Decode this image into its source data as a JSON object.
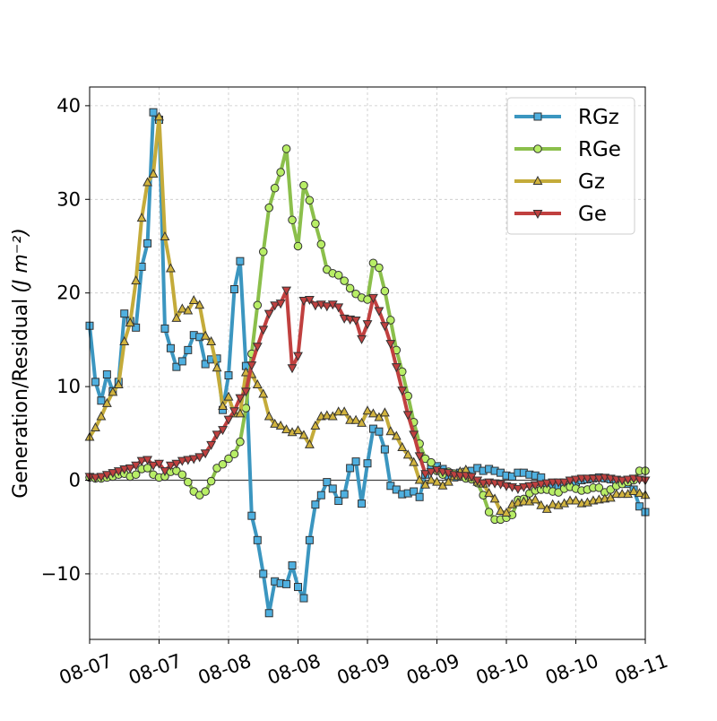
{
  "chart_data": {
    "type": "line",
    "title": "",
    "xlabel": "",
    "ylabel": "Generation/Residual",
    "ylabel_unit": "(J m⁻²)",
    "x_tick_labels": [
      "08-07",
      "08-07",
      "08-08",
      "08-08",
      "08-09",
      "08-09",
      "08-10",
      "08-10",
      "08-11"
    ],
    "x_ticks": [
      0,
      12,
      24,
      36,
      48,
      60,
      72,
      84,
      96
    ],
    "y_ticks": [
      -10,
      0,
      10,
      20,
      30,
      40
    ],
    "xlim": [
      0,
      96
    ],
    "ylim": [
      -17,
      42
    ],
    "x_unit": "hours since first tick",
    "grid": true,
    "zero_line": true,
    "legend_position": "top-right",
    "series": [
      {
        "name": "RGz",
        "color": "#3b96c0",
        "marker_fill": "#4fb0e0",
        "marker": "square",
        "x": [
          0,
          1,
          2,
          3,
          4,
          5,
          6,
          7,
          8,
          9,
          10,
          11,
          12,
          13,
          14,
          15,
          16,
          17,
          18,
          19,
          20,
          21,
          22,
          23,
          24,
          25,
          26,
          27,
          28,
          29,
          30,
          31,
          32,
          33,
          34,
          35,
          36,
          37,
          38,
          39,
          40,
          41,
          42,
          43,
          44,
          45,
          46,
          47,
          48,
          49,
          50,
          51,
          52,
          53,
          54,
          55,
          56,
          57,
          58,
          59,
          60,
          61,
          62,
          63,
          64,
          65,
          66,
          67,
          68,
          69,
          70,
          71,
          72,
          73,
          74,
          75,
          76,
          77,
          78,
          79,
          80,
          81,
          82,
          83,
          84,
          85,
          86,
          87,
          88,
          89,
          90,
          91,
          92,
          93,
          94,
          95,
          96
        ],
        "values": [
          16.5,
          10.5,
          8.5,
          11.3,
          9.5,
          10.5,
          17.8,
          17,
          16.3,
          22.8,
          25.3,
          39.3,
          38.5,
          16.2,
          14.1,
          12.1,
          12.7,
          13.9,
          15.5,
          15.3,
          12.4,
          12.9,
          13,
          7.5,
          11.2,
          20.4,
          23.4,
          12.2,
          -3.8,
          -6.4,
          -10,
          -14.2,
          -10.8,
          -11,
          -11.1,
          -9.1,
          -11.4,
          -12.6,
          -6.4,
          -2.6,
          -1.6,
          -0.2,
          -0.9,
          -2.2,
          -1.5,
          1.3,
          2,
          -2.5,
          1.8,
          5.5,
          5.2,
          3.3,
          -0.6,
          -1,
          -1.5,
          -1.4,
          -1.2,
          -1.8,
          0.6,
          1.3,
          1.5,
          1.2,
          0.5,
          0.3,
          0.8,
          0.9,
          1,
          1.3,
          1,
          1.2,
          1,
          0.8,
          0.5,
          0.4,
          0.8,
          0.8,
          0.6,
          0.5,
          0.3,
          -0.6,
          -0.8,
          -0.7,
          -0.4,
          -0.3,
          -0.2,
          0,
          0.1,
          0.2,
          0.3,
          0.2,
          0.1,
          0,
          -0.3,
          -0.4,
          -1,
          -2.8,
          -3.4
        ]
      },
      {
        "name": "RGe",
        "color": "#8bbf4b",
        "marker_fill": "#b8ee66",
        "marker": "circle",
        "x": [
          0,
          1,
          2,
          3,
          4,
          5,
          6,
          7,
          8,
          9,
          10,
          11,
          12,
          13,
          14,
          15,
          16,
          17,
          18,
          19,
          20,
          21,
          22,
          23,
          24,
          25,
          26,
          27,
          28,
          29,
          30,
          31,
          32,
          33,
          34,
          35,
          36,
          37,
          38,
          39,
          40,
          41,
          42,
          43,
          44,
          45,
          46,
          47,
          48,
          49,
          50,
          51,
          52,
          53,
          54,
          55,
          56,
          57,
          58,
          59,
          60,
          61,
          62,
          63,
          64,
          65,
          66,
          67,
          68,
          69,
          70,
          71,
          72,
          73,
          74,
          75,
          76,
          77,
          78,
          79,
          80,
          81,
          82,
          83,
          84,
          85,
          86,
          87,
          88,
          89,
          90,
          91,
          92,
          93,
          94,
          95,
          96
        ],
        "values": [
          0.3,
          0.2,
          0.2,
          0.3,
          0.4,
          0.6,
          0.7,
          0.4,
          0.6,
          1.2,
          1.3,
          0.6,
          0.3,
          0.4,
          0.9,
          1,
          0.6,
          -0.2,
          -1.2,
          -1.6,
          -1.2,
          -0.1,
          1.3,
          1.7,
          2.3,
          2.8,
          4.1,
          7.7,
          13.5,
          18.7,
          24.4,
          29.1,
          31.2,
          32.9,
          35.4,
          27.8,
          25,
          31.5,
          29.9,
          27.4,
          25.2,
          22.5,
          22.1,
          21.9,
          21.3,
          20.5,
          19.9,
          19.5,
          19.3,
          23.2,
          22.7,
          20.2,
          17.1,
          13.9,
          11.6,
          9,
          6.2,
          3.9,
          2.3,
          1.9,
          1,
          0.6,
          0.9,
          0.7,
          0.4,
          0.2,
          0.1,
          -0.3,
          -1.6,
          -3.4,
          -4.2,
          -4.2,
          -4,
          -3.7,
          -2.1,
          -2,
          -1.4,
          -1.1,
          -1,
          -1,
          -1.2,
          -1.3,
          -0.9,
          -0.7,
          -0.9,
          -1.1,
          -1,
          -0.8,
          -0.8,
          -1.3,
          -1,
          -0.6,
          -0.4,
          -0.2,
          0,
          1,
          1
        ]
      },
      {
        "name": "Gz",
        "color": "#c4ab3a",
        "marker_fill": "#d2b43e",
        "marker": "triangle-up",
        "x": [
          0,
          1,
          2,
          3,
          4,
          5,
          6,
          7,
          8,
          9,
          10,
          11,
          12,
          13,
          14,
          15,
          16,
          17,
          18,
          19,
          20,
          21,
          22,
          23,
          24,
          25,
          26,
          27,
          28,
          29,
          30,
          31,
          32,
          33,
          34,
          35,
          36,
          37,
          38,
          39,
          40,
          41,
          42,
          43,
          44,
          45,
          46,
          47,
          48,
          49,
          50,
          51,
          52,
          53,
          54,
          55,
          56,
          57,
          58,
          59,
          60,
          61,
          62,
          63,
          64,
          65,
          66,
          67,
          68,
          69,
          70,
          71,
          72,
          73,
          74,
          75,
          76,
          77,
          78,
          79,
          80,
          81,
          82,
          83,
          84,
          85,
          86,
          87,
          88,
          89,
          90,
          91,
          92,
          93,
          94,
          95,
          96
        ],
        "values": [
          4.6,
          5.6,
          6.8,
          8.2,
          9.4,
          10.2,
          14.8,
          16.8,
          21.3,
          28,
          31.8,
          32.7,
          38.8,
          26,
          22.6,
          17.3,
          18.3,
          18.1,
          19.2,
          18.7,
          15.4,
          14.8,
          12,
          7.9,
          8.9,
          7.1,
          7.1,
          11.5,
          11.3,
          10.2,
          9.2,
          6.8,
          6,
          5.8,
          5.4,
          5.1,
          5.3,
          4.8,
          3.8,
          5.8,
          6.8,
          6.9,
          6.8,
          7.3,
          7.3,
          6.4,
          6.4,
          6.1,
          7.4,
          7.1,
          6.7,
          7.2,
          5.2,
          4.7,
          3.5,
          2.7,
          1.9,
          0,
          -0.5,
          0,
          -0.2,
          -0.6,
          -0.2,
          0.4,
          0.9,
          1.1,
          0.3,
          -0.2,
          -0.4,
          -1.4,
          -2,
          -3.3,
          -3.5,
          -2.6,
          -2.4,
          -2.3,
          -2.3,
          -2.1,
          -2.7,
          -3.1,
          -2.6,
          -2.7,
          -2.5,
          -2.2,
          -2.2,
          -2.5,
          -2.4,
          -2.2,
          -2.1,
          -2,
          -1.9,
          -1.5,
          -1.5,
          -1.5,
          -1.2,
          -1.4,
          -1.6
        ]
      },
      {
        "name": "Ge",
        "color": "#c0403f",
        "marker_fill": "#c0403f",
        "marker": "triangle-down",
        "x": [
          0,
          1,
          2,
          3,
          4,
          5,
          6,
          7,
          8,
          9,
          10,
          11,
          12,
          13,
          14,
          15,
          16,
          17,
          18,
          19,
          20,
          21,
          22,
          23,
          24,
          25,
          26,
          27,
          28,
          29,
          30,
          31,
          32,
          33,
          34,
          35,
          36,
          37,
          38,
          39,
          40,
          41,
          42,
          43,
          44,
          45,
          46,
          47,
          48,
          49,
          50,
          51,
          52,
          53,
          54,
          55,
          56,
          57,
          58,
          59,
          60,
          61,
          62,
          63,
          64,
          65,
          66,
          67,
          68,
          69,
          70,
          71,
          72,
          73,
          74,
          75,
          76,
          77,
          78,
          79,
          80,
          81,
          82,
          83,
          84,
          85,
          86,
          87,
          88,
          89,
          90,
          91,
          92,
          93,
          94,
          95,
          96
        ],
        "values": [
          0.4,
          0.3,
          0.4,
          0.6,
          0.8,
          1,
          1.2,
          1.3,
          1.6,
          2.1,
          2.2,
          1.6,
          1.8,
          1,
          1.6,
          1.8,
          2.1,
          2.2,
          2.3,
          2.5,
          2.9,
          3.8,
          4.9,
          5.4,
          6.5,
          7.4,
          8.8,
          9.5,
          12.3,
          14.3,
          16.1,
          17.8,
          18.7,
          18.9,
          20.3,
          12,
          13.3,
          19.2,
          19.3,
          18.7,
          18.8,
          18.6,
          18.8,
          18.5,
          17.3,
          17.2,
          17.1,
          15.1,
          16.7,
          19.5,
          18.1,
          16.5,
          14.6,
          12.1,
          9.6,
          7,
          4.9,
          2.6,
          0.7,
          0.9,
          1.1,
          0.9,
          0.8,
          0.6,
          0.5,
          0.5,
          0.4,
          0,
          -0.3,
          -0.2,
          -0.3,
          -0.4,
          -0.6,
          -0.7,
          -0.9,
          -0.7,
          -0.6,
          -0.5,
          -0.4,
          -0.3,
          -0.2,
          -0.2,
          -0.2,
          0,
          0.1,
          0.2,
          0.2,
          0.2,
          0.2,
          0.3,
          0.2,
          0.1,
          0,
          0.1,
          0.2,
          0.1,
          0
        ]
      }
    ]
  }
}
